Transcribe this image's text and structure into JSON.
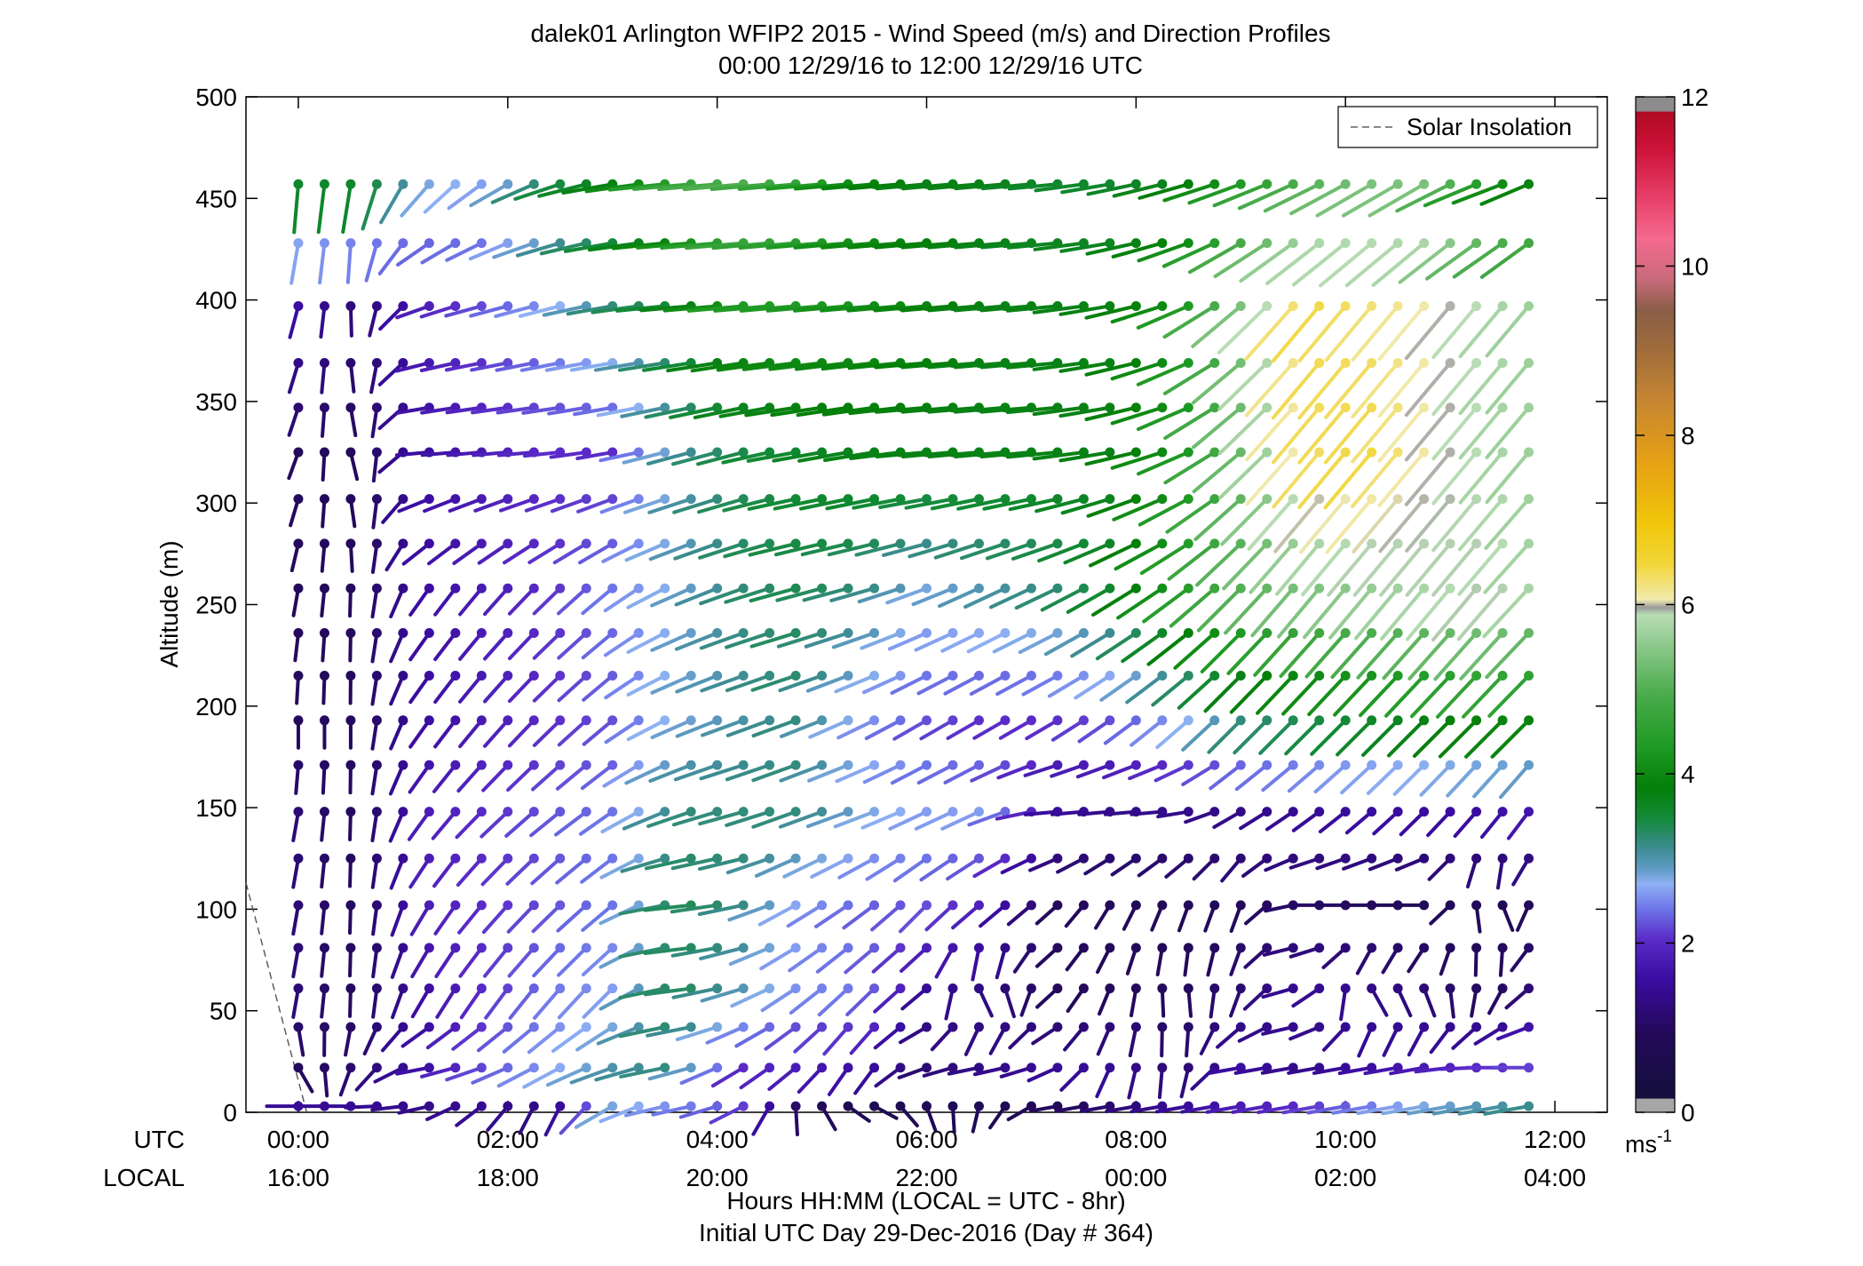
{
  "chart_data": {
    "type": "wind-barb-profile",
    "title": "dalek01 Arlington WFIP2 2015 - Wind Speed (m/s) and Direction Profiles",
    "subtitle": "00:00 12/29/16 to 12:00 12/29/16  UTC",
    "ylabel": "Altitude (m)",
    "xlabel": "Hours HH:MM  (LOCAL = UTC - 8hr)",
    "xlabel2": "Initial UTC Day 29-Dec-2016 (Day # 364)",
    "row_label_utc": "UTC",
    "row_label_local": "LOCAL",
    "x_ticks": [
      {
        "hour": 0,
        "utc": "00:00",
        "local": "16:00"
      },
      {
        "hour": 2,
        "utc": "02:00",
        "local": "18:00"
      },
      {
        "hour": 4,
        "utc": "04:00",
        "local": "20:00"
      },
      {
        "hour": 6,
        "utc": "06:00",
        "local": "22:00"
      },
      {
        "hour": 8,
        "utc": "08:00",
        "local": "00:00"
      },
      {
        "hour": 10,
        "utc": "10:00",
        "local": "02:00"
      },
      {
        "hour": 12,
        "utc": "12:00",
        "local": "04:00"
      }
    ],
    "xlim": [
      -0.5,
      12.5
    ],
    "ylim": [
      0,
      500
    ],
    "y_ticks": [
      "0",
      "50",
      "100",
      "150",
      "200",
      "250",
      "300",
      "350",
      "400",
      "450",
      "500"
    ],
    "legend": {
      "label": "Solar Insolation",
      "placement": "top-right",
      "style": "dashed",
      "color": "#888888"
    },
    "colorbar": {
      "min": 0,
      "max": 12,
      "units": "ms",
      "units_exp": "-1",
      "tick_labels": [
        "0",
        "2",
        "4",
        "6",
        "8",
        "10",
        "12"
      ]
    },
    "solar_insolation": [
      [
        -0.5,
        113
      ],
      [
        0.08,
        0
      ]
    ],
    "time_step_hours": 0.25,
    "time_start_hours": 0.0,
    "altitudes_m": [
      3,
      22,
      42,
      61,
      81,
      102,
      125,
      148,
      171,
      193,
      215,
      236,
      258,
      280,
      302,
      325,
      347,
      369,
      397,
      428,
      457
    ],
    "profile_key": [
      {
        "alt_m": 3,
        "speed_ms": [
          1.5,
          1.5,
          1.4,
          1.5,
          1.3,
          2.8,
          2.5,
          2.2,
          1.0,
          0.7,
          0.8,
          0.8,
          0.9,
          1.2,
          1.5,
          1.8,
          2.0,
          2.4,
          2.8,
          3.0,
          3.2
        ],
        "dir_deg": [
          270,
          270,
          260,
          230,
          200,
          240,
          260,
          250,
          170,
          110,
          160,
          200,
          260,
          260,
          260,
          260,
          260,
          260,
          260,
          260,
          260
        ]
      },
      {
        "alt_m": 22,
        "speed_ms": [
          1.0,
          1.2,
          1.6,
          2.2,
          2.6,
          3.0,
          3.2,
          2.0,
          1.8,
          1.6,
          1.2,
          1.4,
          1.5,
          1.5,
          1.2,
          1.6,
          1.4,
          1.6,
          1.8,
          2.0,
          2.2
        ],
        "dir_deg": [
          150,
          210,
          260,
          250,
          240,
          250,
          260,
          240,
          230,
          210,
          250,
          260,
          250,
          200,
          180,
          260,
          260,
          260,
          260,
          270,
          270
        ]
      },
      {
        "alt_m": 61,
        "speed_ms": [
          1.2,
          1.0,
          1.6,
          2.0,
          2.4,
          2.6,
          3.4,
          3.0,
          2.5,
          2.4,
          1.5,
          1.3,
          1.0,
          1.0,
          1.0,
          1.2,
          1.5,
          1.4,
          1.2,
          1.0,
          1.4
        ],
        "dir_deg": [
          190,
          180,
          210,
          215,
          220,
          225,
          265,
          255,
          235,
          225,
          230,
          140,
          230,
          200,
          170,
          200,
          265,
          150,
          160,
          200,
          250
        ]
      },
      {
        "alt_m": 102,
        "speed_ms": [
          1.2,
          1.0,
          1.8,
          2.0,
          2.2,
          2.4,
          3.4,
          3.2,
          2.6,
          2.3,
          2.2,
          1.8,
          1.0,
          0.9,
          0.9,
          1.0,
          1.1,
          1.0,
          0.9,
          0.9,
          1.0
        ],
        "dir_deg": [
          190,
          180,
          210,
          220,
          225,
          230,
          265,
          260,
          240,
          235,
          225,
          230,
          230,
          210,
          200,
          200,
          270,
          270,
          270,
          140,
          250
        ]
      },
      {
        "alt_m": 148,
        "speed_ms": [
          1.2,
          1.0,
          1.8,
          2.0,
          2.2,
          2.4,
          3.2,
          3.2,
          3.2,
          2.8,
          2.6,
          2.6,
          1.6,
          1.4,
          1.4,
          1.4,
          1.5,
          1.6,
          1.6,
          1.6,
          1.8
        ],
        "dir_deg": [
          190,
          180,
          215,
          225,
          230,
          235,
          250,
          255,
          250,
          250,
          245,
          245,
          265,
          265,
          265,
          240,
          235,
          230,
          225,
          220,
          215
        ]
      },
      {
        "alt_m": 193,
        "speed_ms": [
          1.0,
          1.0,
          1.6,
          1.8,
          2.0,
          2.2,
          2.8,
          3.0,
          3.2,
          2.6,
          2.2,
          2.0,
          2.0,
          2.2,
          2.6,
          3.2,
          3.4,
          3.6,
          3.8,
          4.0,
          4.0
        ],
        "dir_deg": [
          180,
          180,
          215,
          220,
          225,
          230,
          245,
          250,
          250,
          245,
          240,
          240,
          240,
          235,
          230,
          225,
          225,
          225,
          225,
          225,
          225
        ]
      },
      {
        "alt_m": 258,
        "speed_ms": [
          1.0,
          1.0,
          1.6,
          1.8,
          2.0,
          2.4,
          2.8,
          3.2,
          3.4,
          3.2,
          2.8,
          3.0,
          3.2,
          3.6,
          4.4,
          5.0,
          5.4,
          5.6,
          5.8,
          6.0,
          5.6
        ],
        "dir_deg": [
          190,
          180,
          215,
          220,
          225,
          230,
          245,
          250,
          255,
          255,
          250,
          245,
          245,
          240,
          235,
          225,
          220,
          220,
          220,
          220,
          225
        ]
      },
      {
        "alt_m": 325,
        "speed_ms": [
          1.0,
          1.0,
          1.6,
          1.8,
          2.0,
          2.0,
          3.0,
          3.4,
          3.6,
          3.8,
          3.8,
          3.8,
          3.8,
          3.8,
          4.2,
          5.2,
          6.4,
          6.6,
          6.2,
          5.8,
          5.6
        ],
        "dir_deg": [
          200,
          160,
          265,
          265,
          265,
          260,
          255,
          255,
          260,
          260,
          265,
          265,
          265,
          260,
          250,
          230,
          220,
          220,
          220,
          220,
          220
        ]
      },
      {
        "alt_m": 397,
        "speed_ms": [
          1.6,
          1.2,
          1.8,
          2.2,
          2.6,
          3.2,
          3.6,
          4.4,
          4.4,
          4.2,
          4.0,
          3.8,
          3.8,
          3.8,
          4.2,
          5.4,
          6.6,
          6.4,
          6.2,
          5.8,
          5.6
        ],
        "dir_deg": [
          195,
          175,
          250,
          255,
          255,
          260,
          265,
          265,
          265,
          265,
          265,
          265,
          265,
          260,
          250,
          230,
          220,
          220,
          220,
          220,
          220
        ]
      },
      {
        "alt_m": 457,
        "speed_ms": [
          3.6,
          3.6,
          2.8,
          2.6,
          3.4,
          3.8,
          4.6,
          5.0,
          4.6,
          4.0,
          3.8,
          3.8,
          3.6,
          3.6,
          3.8,
          4.4,
          5.0,
          5.4,
          5.4,
          4.2,
          3.8
        ],
        "dir_deg": [
          185,
          190,
          220,
          235,
          250,
          260,
          265,
          265,
          265,
          265,
          265,
          265,
          265,
          260,
          255,
          250,
          245,
          240,
          240,
          250,
          245
        ]
      }
    ]
  }
}
